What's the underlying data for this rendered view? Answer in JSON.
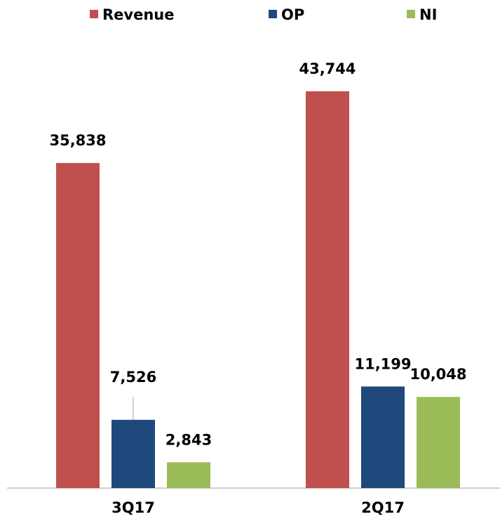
{
  "chart_data": {
    "type": "bar",
    "categories": [
      "3Q17",
      "2Q17"
    ],
    "series": [
      {
        "name": "Revenue",
        "color": "#c0504d",
        "values": [
          35838,
          43744
        ],
        "value_labels": [
          "35,838",
          "43,744"
        ]
      },
      {
        "name": "OP",
        "color": "#1f497d",
        "values": [
          7526,
          11199
        ],
        "value_labels": [
          "7,526",
          "11,199"
        ]
      },
      {
        "name": "NI",
        "color": "#9bbb59",
        "values": [
          2843,
          10048
        ],
        "value_labels": [
          "2,843",
          "10,048"
        ]
      }
    ],
    "legend": "top"
  }
}
